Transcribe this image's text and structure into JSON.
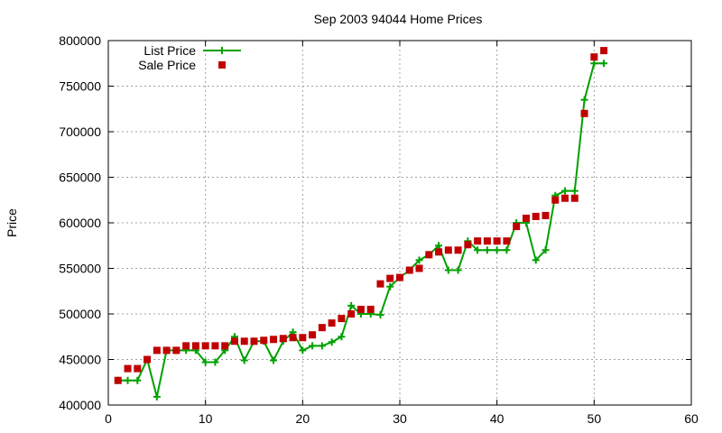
{
  "chart_data": {
    "type": "line",
    "title": "Sep 2003 94044 Home Prices",
    "xlabel": "",
    "ylabel": "Price",
    "xlim": [
      0,
      60
    ],
    "ylim": [
      400000,
      800000
    ],
    "x_ticks": [
      0,
      10,
      20,
      30,
      40,
      50,
      60
    ],
    "y_ticks": [
      400000,
      450000,
      500000,
      550000,
      600000,
      650000,
      700000,
      750000,
      800000
    ],
    "grid": true,
    "legend_position": "top-left",
    "series": [
      {
        "name": "List Price",
        "style": "line+cross",
        "color": "#00a000",
        "x": [
          1,
          2,
          3,
          4,
          5,
          6,
          7,
          8,
          9,
          10,
          11,
          12,
          13,
          14,
          15,
          16,
          17,
          18,
          19,
          20,
          21,
          22,
          23,
          24,
          25,
          26,
          27,
          28,
          29,
          30,
          31,
          32,
          33,
          34,
          35,
          36,
          37,
          38,
          39,
          40,
          41,
          42,
          43,
          44,
          45,
          46,
          47,
          48,
          49,
          50,
          51
        ],
        "values": [
          427000,
          427000,
          427000,
          450000,
          409000,
          460000,
          460000,
          460000,
          460000,
          447000,
          447000,
          460000,
          475000,
          449000,
          470000,
          470000,
          449000,
          470000,
          480000,
          460000,
          465000,
          465000,
          469000,
          475000,
          509000,
          500000,
          500000,
          499000,
          530000,
          540000,
          548000,
          559000,
          565000,
          575000,
          548000,
          548000,
          580000,
          570000,
          570000,
          570000,
          570000,
          600000,
          600000,
          559000,
          570000,
          630000,
          635000,
          635000,
          735000,
          775000,
          775000
        ]
      },
      {
        "name": "Sale Price",
        "style": "points-square",
        "color": "#c00000",
        "x": [
          1,
          2,
          3,
          4,
          5,
          6,
          7,
          8,
          9,
          10,
          11,
          12,
          13,
          14,
          15,
          16,
          17,
          18,
          19,
          20,
          21,
          22,
          23,
          24,
          25,
          26,
          27,
          28,
          29,
          30,
          31,
          32,
          33,
          34,
          35,
          36,
          37,
          38,
          39,
          40,
          41,
          42,
          43,
          44,
          45,
          46,
          47,
          48,
          49,
          50,
          51
        ],
        "values": [
          427000,
          440000,
          440000,
          450000,
          460000,
          460000,
          460000,
          465000,
          465000,
          465000,
          465000,
          465000,
          470000,
          470000,
          470000,
          471000,
          472000,
          473000,
          474000,
          474000,
          477000,
          485000,
          490000,
          495000,
          500000,
          505000,
          505000,
          533000,
          539000,
          540000,
          548000,
          550000,
          565000,
          568000,
          570000,
          570000,
          576000,
          580000,
          580000,
          580000,
          580000,
          596000,
          605000,
          607000,
          608000,
          625000,
          627000,
          627000,
          720000,
          782000,
          789000
        ]
      }
    ]
  }
}
